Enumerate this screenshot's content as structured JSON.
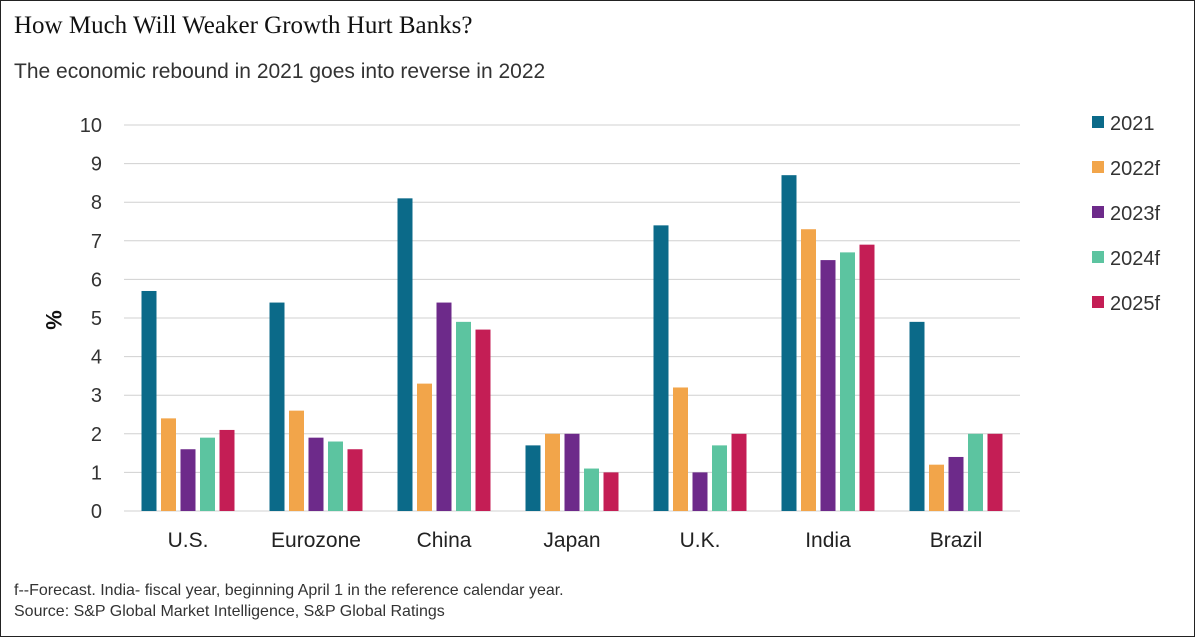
{
  "title": "How Much Will Weaker Growth Hurt Banks?",
  "subtitle": "The economic rebound in 2021 goes into reverse in 2022",
  "footnote": "f--Forecast. India- fiscal year, beginning April 1 in the reference calendar year.",
  "source": "Source: S&P Global Market Intelligence, S&P Global Ratings",
  "chart_data": {
    "type": "bar",
    "ylabel": "%",
    "ylim": [
      0,
      10
    ],
    "yticks": [
      0,
      1,
      2,
      3,
      4,
      5,
      6,
      7,
      8,
      9,
      10
    ],
    "grid": true,
    "legend_position": "right",
    "categories": [
      "U.S.",
      "Eurozone",
      "China",
      "Japan",
      "U.K.",
      "India",
      "Brazil"
    ],
    "series": [
      {
        "name": "2021",
        "color": "#0b6a89",
        "values": [
          5.7,
          5.4,
          8.1,
          1.7,
          7.4,
          8.7,
          4.9
        ]
      },
      {
        "name": "2022f",
        "color": "#f2a54a",
        "values": [
          2.4,
          2.6,
          3.3,
          2.0,
          3.2,
          7.3,
          1.2
        ]
      },
      {
        "name": "2023f",
        "color": "#6d2a8a",
        "values": [
          1.6,
          1.9,
          5.4,
          2.0,
          1.0,
          6.5,
          1.4
        ]
      },
      {
        "name": "2024f",
        "color": "#5cc4a0",
        "values": [
          1.9,
          1.8,
          4.9,
          1.1,
          1.7,
          6.7,
          2.0
        ]
      },
      {
        "name": "2025f",
        "color": "#c41e55",
        "values": [
          2.1,
          1.6,
          4.7,
          1.0,
          2.0,
          6.9,
          2.0
        ]
      }
    ]
  }
}
